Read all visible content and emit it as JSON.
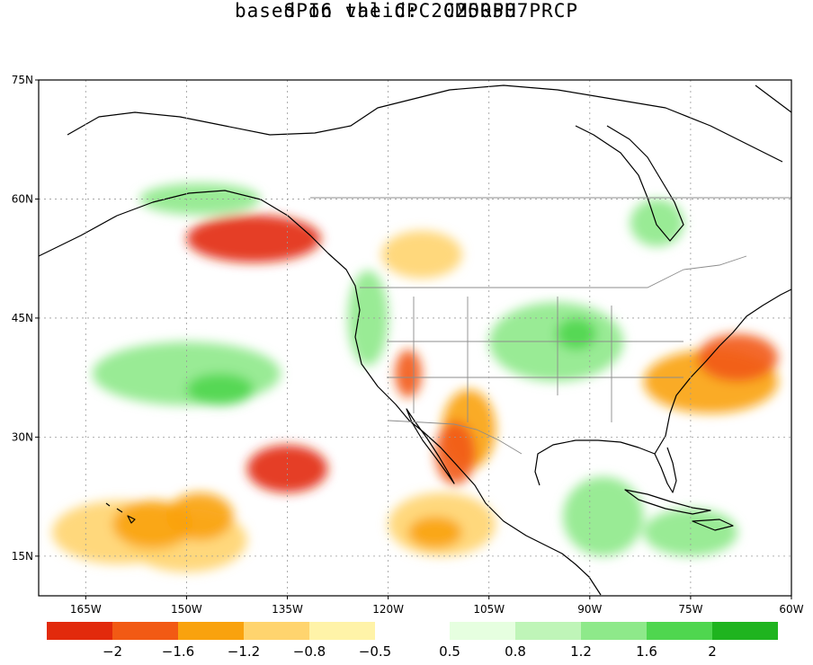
{
  "title": "SPI6   valid: 20250507",
  "subtitle": "based on the CPC CMORPH PRCP",
  "map": {
    "lat_range": [
      10,
      75
    ],
    "lon_range": [
      -172,
      -60
    ],
    "lat_labels": [
      {
        "lat": 75,
        "text": "75N"
      },
      {
        "lat": 60,
        "text": "60N"
      },
      {
        "lat": 45,
        "text": "45N"
      },
      {
        "lat": 30,
        "text": "30N"
      },
      {
        "lat": 15,
        "text": "15N"
      }
    ],
    "lon_labels": [
      {
        "lon": -165,
        "text": "165W"
      },
      {
        "lon": -150,
        "text": "150W"
      },
      {
        "lon": -135,
        "text": "135W"
      },
      {
        "lon": -120,
        "text": "120W"
      },
      {
        "lon": -105,
        "text": "105W"
      },
      {
        "lon": -90,
        "text": "90W"
      },
      {
        "lon": -75,
        "text": "75W"
      },
      {
        "lon": -60,
        "text": "60W"
      }
    ]
  },
  "legend": {
    "dry_colors": [
      "#e22a0c",
      "#f25a14",
      "#f9a20e",
      "#ffd46e",
      "#fff3a8"
    ],
    "wet_colors": [
      "#e6ffe0",
      "#bff5b8",
      "#8ee98a",
      "#4fd64f",
      "#1fb41f"
    ],
    "dry_labels": [
      "−2",
      "−1.6",
      "−1.2",
      "−0.8",
      "−0.5"
    ],
    "wet_labels": [
      "0.5",
      "0.8",
      "1.2",
      "1.6",
      "2"
    ]
  },
  "anomalies": [
    {
      "lon": -160,
      "lat": 18,
      "rx": 10,
      "ry": 4,
      "level": "dry1"
    },
    {
      "lon": -150,
      "lat": 17,
      "rx": 9,
      "ry": 4,
      "level": "dry1"
    },
    {
      "lon": -155,
      "lat": 19,
      "rx": 6,
      "ry": 3,
      "level": "dry2"
    },
    {
      "lon": -148,
      "lat": 20,
      "rx": 5,
      "ry": 3,
      "level": "dry2"
    },
    {
      "lon": -112,
      "lat": 19,
      "rx": 8,
      "ry": 4,
      "level": "dry1"
    },
    {
      "lon": -113,
      "lat": 18,
      "rx": 4,
      "ry": 2,
      "level": "dry2"
    },
    {
      "lon": -108,
      "lat": 31,
      "rx": 4,
      "ry": 5,
      "level": "dry2"
    },
    {
      "lon": -110,
      "lat": 28,
      "rx": 3,
      "ry": 4,
      "level": "dry3"
    },
    {
      "lon": -117,
      "lat": 38,
      "rx": 2,
      "ry": 3,
      "level": "dry3"
    },
    {
      "lon": -72,
      "lat": 37,
      "rx": 10,
      "ry": 4,
      "level": "dry2"
    },
    {
      "lon": -68,
      "lat": 40,
      "rx": 6,
      "ry": 3,
      "level": "dry3"
    },
    {
      "lon": -115,
      "lat": 53,
      "rx": 6,
      "ry": 3,
      "level": "dry1"
    },
    {
      "lon": -140,
      "lat": 55,
      "rx": 10,
      "ry": 3,
      "level": "dry4"
    },
    {
      "lon": -135,
      "lat": 26,
      "rx": 6,
      "ry": 3,
      "level": "dry4"
    },
    {
      "lon": -150,
      "lat": 38,
      "rx": 14,
      "ry": 4,
      "level": "wet2"
    },
    {
      "lon": -145,
      "lat": 36,
      "rx": 5,
      "ry": 2,
      "level": "wet3"
    },
    {
      "lon": -95,
      "lat": 42,
      "rx": 10,
      "ry": 5,
      "level": "wet2"
    },
    {
      "lon": -92,
      "lat": 43,
      "rx": 3,
      "ry": 2,
      "level": "wet3"
    },
    {
      "lon": -88,
      "lat": 20,
      "rx": 6,
      "ry": 5,
      "level": "wet2"
    },
    {
      "lon": -75,
      "lat": 18,
      "rx": 7,
      "ry": 3,
      "level": "wet2"
    },
    {
      "lon": -148,
      "lat": 60,
      "rx": 9,
      "ry": 2,
      "level": "wet2"
    },
    {
      "lon": -123,
      "lat": 45,
      "rx": 3,
      "ry": 6,
      "level": "wet2"
    },
    {
      "lon": -80,
      "lat": 57,
      "rx": 4,
      "ry": 3,
      "level": "wet2"
    }
  ]
}
